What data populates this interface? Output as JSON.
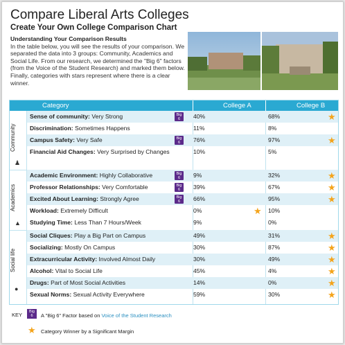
{
  "header": {
    "title": "Compare Liberal Arts Colleges",
    "subtitle": "Create Your Own College Comparison Chart",
    "intro_heading": "Understanding Your Comparison Results",
    "intro_body": "In the table below, you will see the results of your comparison. We separated the data into 3 groups: Community, Academics and Social Life. From our research, we determined the \"Big 6\" factors (from the Voice of the Student Research) and marked them below. Finally, categories with stars represent where there is a clear winner."
  },
  "table": {
    "col_category": "Category",
    "col_a": "College A",
    "col_b": "College B",
    "groups": {
      "community": "Community",
      "academics": "Academics",
      "social": "Social life"
    },
    "rows": [
      {
        "name": "Sense of community:",
        "value": "Very Strong",
        "big6": true,
        "a": "40%",
        "b": "68%",
        "star_a": false,
        "star_b": true
      },
      {
        "name": "Discrimination:",
        "value": "Sometimes Happens",
        "big6": false,
        "a": "11%",
        "b": "8%",
        "star_a": false,
        "star_b": false
      },
      {
        "name": "Campus Safety:",
        "value": "Very Safe",
        "big6": true,
        "a": "76%",
        "b": "97%",
        "star_a": false,
        "star_b": true
      },
      {
        "name": "Financial Aid Changes:",
        "value": "Very Surprised by Changes",
        "big6": false,
        "a": "10%",
        "b": "5%",
        "star_a": false,
        "star_b": false
      },
      {
        "name": "Academic Environment:",
        "value": "Highly Collaborative",
        "big6": true,
        "a": "9%",
        "b": "32%",
        "star_a": false,
        "star_b": true
      },
      {
        "name": "Professor Relationships:",
        "value": "Very Comfortable",
        "big6": true,
        "a": "39%",
        "b": "67%",
        "star_a": false,
        "star_b": true
      },
      {
        "name": "Excited About Learning:",
        "value": "Strongly Agree",
        "big6": true,
        "a": "66%",
        "b": "95%",
        "star_a": false,
        "star_b": true
      },
      {
        "name": "Workload:",
        "value": "Extremely Difficult",
        "big6": false,
        "a": "0%",
        "b": "10%",
        "star_a": true,
        "star_b": false
      },
      {
        "name": "Studying Time:",
        "value": "Less Than 7 Hours/Week",
        "big6": false,
        "a": "9%",
        "b": "0%",
        "star_a": false,
        "star_b": false
      },
      {
        "name": "Social Cliques:",
        "value": "Play a Big Part on Campus",
        "big6": false,
        "a": "49%",
        "b": "31%",
        "star_a": false,
        "star_b": true
      },
      {
        "name": "Socializing:",
        "value": "Mostly On Campus",
        "big6": false,
        "a": "30%",
        "b": "87%",
        "star_a": false,
        "star_b": true
      },
      {
        "name": "Extracurricular Activity:",
        "value": "Involved Almost Daily",
        "big6": false,
        "a": "30%",
        "b": "49%",
        "star_a": false,
        "star_b": true
      },
      {
        "name": "Alcohol:",
        "value": "Vital to Social Life",
        "big6": false,
        "a": "45%",
        "b": "4%",
        "star_a": false,
        "star_b": true
      },
      {
        "name": "Drugs:",
        "value": "Part of Most Social Activities",
        "big6": false,
        "a": "14%",
        "b": "0%",
        "star_a": false,
        "star_b": true
      },
      {
        "name": "Sexual Norms:",
        "value": "Sexual Activity Everywhere",
        "big6": false,
        "a": "59%",
        "b": "30%",
        "star_a": false,
        "star_b": true
      }
    ]
  },
  "badge": {
    "line1": "Big",
    "line2": "6"
  },
  "key": {
    "label": "KEY",
    "big6_text": "A \"Big 6\" Factor based on ",
    "big6_link": "Voice of the Student Research",
    "star_text": "Category Winner by a Significant Margin"
  },
  "colors": {
    "header": "#2aa9d2",
    "shade": "#dff0f7",
    "badge": "#5b2a8a",
    "star": "#f4a41b"
  }
}
